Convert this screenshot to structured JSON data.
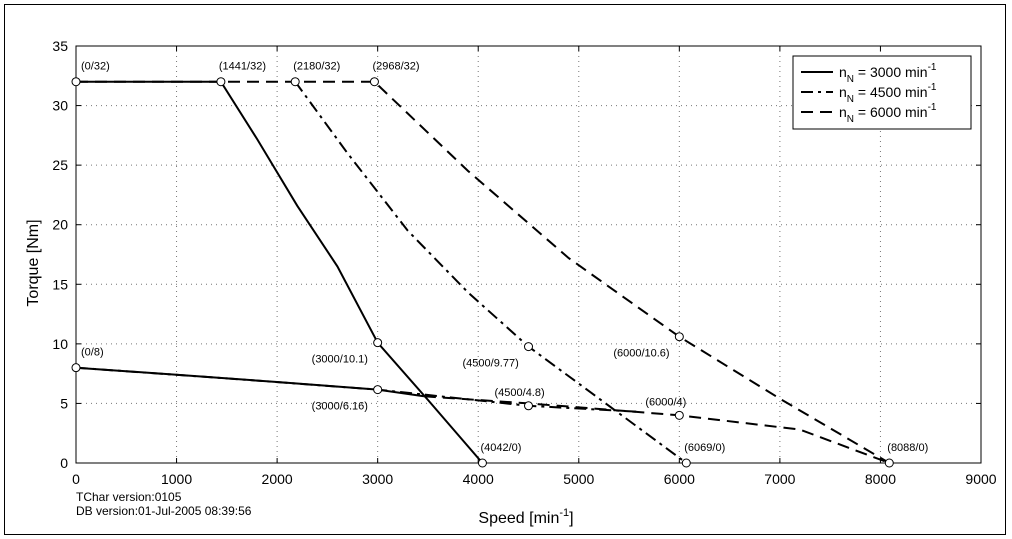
{
  "chart_data": {
    "type": "line",
    "title": "",
    "xlabel": "Speed [min",
    "xlabel_sup": "-1",
    "xlabel_end": "]",
    "ylabel": "Torque [Nm]",
    "xlim": [
      0,
      9000
    ],
    "ylim": [
      0,
      35
    ],
    "xticks": [
      0,
      1000,
      2000,
      3000,
      4000,
      5000,
      6000,
      7000,
      8000,
      9000
    ],
    "yticks": [
      0,
      5,
      10,
      15,
      20,
      25,
      30,
      35
    ],
    "grid": true,
    "legend_position": "top-right",
    "series": [
      {
        "legend_main": "n",
        "legend_sub": "N",
        "legend_value": " = 3000 min",
        "legend_sup": "-1",
        "style": "solid",
        "upper": [
          [
            0,
            32
          ],
          [
            1441,
            32
          ],
          [
            1800,
            27.2
          ],
          [
            2200,
            21.6
          ],
          [
            2600,
            16.5
          ],
          [
            3000,
            10.1
          ],
          [
            3500,
            5.3
          ],
          [
            4042,
            0
          ]
        ],
        "lower": [
          [
            0,
            8
          ],
          [
            1000,
            7.4
          ],
          [
            2000,
            6.8
          ],
          [
            3000,
            6.16
          ],
          [
            3460,
            5.6
          ]
        ]
      },
      {
        "legend_main": "n",
        "legend_sub": "N",
        "legend_value": " = 4500 min",
        "legend_sup": "-1",
        "style": "dashdot",
        "upper": [
          [
            2180,
            32
          ],
          [
            2700,
            26
          ],
          [
            3300,
            19.5
          ],
          [
            3900,
            14.3
          ],
          [
            4500,
            9.77
          ],
          [
            5300,
            4.8
          ],
          [
            6069,
            0
          ]
        ],
        "lower": [
          [
            0,
            8
          ],
          [
            1500,
            7.1
          ],
          [
            3000,
            6.16
          ],
          [
            4500,
            4.8
          ],
          [
            5600,
            4.3
          ]
        ]
      },
      {
        "legend_main": "n",
        "legend_sub": "N",
        "legend_value": " = 6000 min",
        "legend_sup": "-1",
        "style": "dashed",
        "upper": [
          [
            0,
            32
          ],
          [
            2968,
            32
          ],
          [
            3900,
            24.5
          ],
          [
            4900,
            17.2
          ],
          [
            6000,
            10.6
          ],
          [
            7000,
            5.4
          ],
          [
            8088,
            0
          ]
        ],
        "lower": [
          [
            3460,
            5.6
          ],
          [
            4500,
            5.0
          ],
          [
            6000,
            4
          ],
          [
            7200,
            2.8
          ],
          [
            8088,
            0
          ]
        ]
      }
    ],
    "points": [
      {
        "x": 0,
        "y": 32,
        "label": "(0/32)",
        "anchor": "right"
      },
      {
        "x": 1441,
        "y": 32,
        "label": "(1441/32)",
        "anchor": "top"
      },
      {
        "x": 2180,
        "y": 32,
        "label": "(2180/32)",
        "anchor": "top"
      },
      {
        "x": 2968,
        "y": 32,
        "label": "(2968/32)",
        "anchor": "top"
      },
      {
        "x": 0,
        "y": 8,
        "label": "(0/8)",
        "anchor": "right"
      },
      {
        "x": 3000,
        "y": 10.1,
        "label": "(3000/10.1)",
        "anchor": "below-left"
      },
      {
        "x": 3000,
        "y": 6.16,
        "label": "(3000/6.16)",
        "anchor": "below-left"
      },
      {
        "x": 4500,
        "y": 9.77,
        "label": "(4500/9.77)",
        "anchor": "below-left"
      },
      {
        "x": 4500,
        "y": 4.8,
        "label": "(4500/4.8)",
        "anchor": "above-left"
      },
      {
        "x": 6000,
        "y": 10.6,
        "label": "(6000/10.6)",
        "anchor": "below-left"
      },
      {
        "x": 6000,
        "y": 4,
        "label": "(6000/4)",
        "anchor": "above-left"
      },
      {
        "x": 4042,
        "y": 0,
        "label": "(4042/0)",
        "anchor": "top"
      },
      {
        "x": 6069,
        "y": 0,
        "label": "(6069/0)",
        "anchor": "top"
      },
      {
        "x": 8088,
        "y": 0,
        "label": "(8088/0)",
        "anchor": "top"
      }
    ]
  },
  "footer": {
    "tchar_version": "TChar version:0105",
    "db_version": "DB version:01-Jul-2005 08:39:56"
  }
}
